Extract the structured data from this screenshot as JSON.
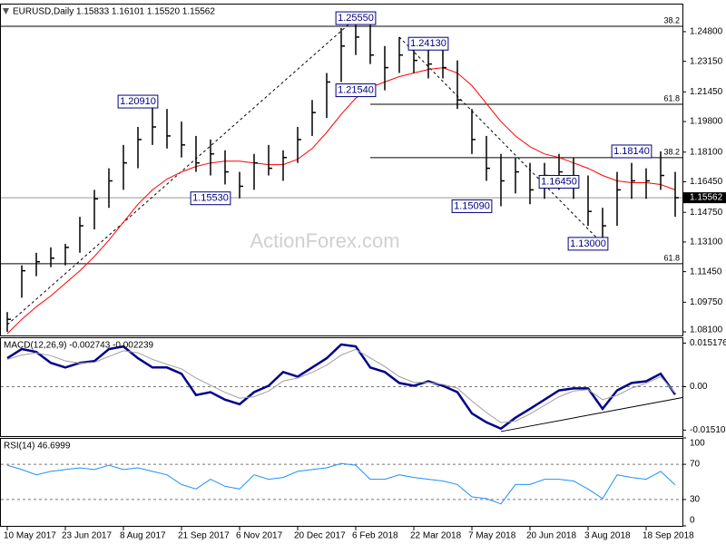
{
  "chart_data": [
    {
      "type": "ohlc",
      "title": "EURUSD,Daily 1.15833 1.16101 1.15520 1.15562",
      "color": "#000000",
      "high": [
        1.092,
        1.118,
        1.125,
        1.128,
        1.13,
        1.145,
        1.16,
        1.172,
        1.185,
        1.195,
        1.2091,
        1.205,
        1.198,
        1.19,
        1.188,
        1.182,
        1.17,
        1.18,
        1.185,
        1.182,
        1.195,
        1.21,
        1.225,
        1.25,
        1.2555,
        1.252,
        1.24,
        1.245,
        1.2413,
        1.242,
        1.238,
        1.232,
        1.205,
        1.19,
        1.18,
        1.178,
        1.175,
        1.175,
        1.18,
        1.178,
        1.168,
        1.15,
        1.17,
        1.175,
        1.172,
        1.1814,
        1.17
      ],
      "low": [
        1.081,
        1.1,
        1.112,
        1.117,
        1.118,
        1.125,
        1.138,
        1.15,
        1.16,
        1.172,
        1.185,
        1.183,
        1.178,
        1.17,
        1.168,
        1.163,
        1.1553,
        1.16,
        1.168,
        1.165,
        1.175,
        1.19,
        1.2,
        1.22,
        1.235,
        1.23,
        1.2154,
        1.225,
        1.225,
        1.222,
        1.222,
        1.205,
        1.18,
        1.165,
        1.1509,
        1.158,
        1.152,
        1.155,
        1.16,
        1.155,
        1.14,
        1.13,
        1.14,
        1.155,
        1.155,
        1.16,
        1.145
      ],
      "close": [
        1.088,
        1.115,
        1.12,
        1.122,
        1.128,
        1.14,
        1.155,
        1.165,
        1.175,
        1.188,
        1.195,
        1.19,
        1.185,
        1.175,
        1.18,
        1.17,
        1.162,
        1.175,
        1.172,
        1.178,
        1.188,
        1.203,
        1.22,
        1.24,
        1.245,
        1.235,
        1.228,
        1.235,
        1.232,
        1.23,
        1.228,
        1.21,
        1.188,
        1.172,
        1.165,
        1.17,
        1.16,
        1.168,
        1.17,
        1.165,
        1.148,
        1.14,
        1.16,
        1.165,
        1.165,
        1.168,
        1.15562
      ],
      "overlays": [
        {
          "color": "#ff0000",
          "values": [
            1.08,
            1.088,
            1.095,
            1.101,
            1.108,
            1.115,
            1.123,
            1.132,
            1.142,
            1.152,
            1.16,
            1.166,
            1.17,
            1.173,
            1.175,
            1.176,
            1.176,
            1.175,
            1.174,
            1.174,
            1.177,
            1.183,
            1.192,
            1.202,
            1.211,
            1.217,
            1.22,
            1.223,
            1.225,
            1.227,
            1.228,
            1.225,
            1.218,
            1.208,
            1.198,
            1.19,
            1.184,
            1.18,
            1.178,
            1.175,
            1.172,
            1.168,
            1.165,
            1.164,
            1.164,
            1.163,
            1.16
          ]
        }
      ],
      "ylim": [
        1.079,
        1.2636
      ],
      "yticks": [
        {
          "value": 1.081,
          "label": "1.08100"
        },
        {
          "value": 1.0975,
          "label": "1.09750"
        },
        {
          "value": 1.1145,
          "label": "1.11450"
        },
        {
          "value": 1.131,
          "label": "1.13100"
        },
        {
          "value": 1.1475,
          "label": "1.14750"
        },
        {
          "value": 1.1645,
          "label": "1.16450"
        },
        {
          "value": 1.181,
          "label": "1.18100"
        },
        {
          "value": 1.198,
          "label": "1.19800"
        },
        {
          "value": 1.2145,
          "label": "1.21450"
        },
        {
          "value": 1.2315,
          "label": "1.23150"
        },
        {
          "value": 1.248,
          "label": "1.24800"
        }
      ],
      "levels": [
        {
          "value": 1.251,
          "label": "38.2",
          "from": 0
        },
        {
          "value": 1.2076,
          "label": "61.8",
          "from": 25
        },
        {
          "value": 1.1779,
          "label": "38.2",
          "from": 25
        },
        {
          "value": 1.1189,
          "label": "61.8",
          "from": 0
        }
      ],
      "trendlines": [
        {
          "from": [
            0,
            1.085
          ],
          "to": [
            24,
            1.2555
          ]
        },
        {
          "from": [
            27,
            1.245
          ],
          "to": [
            41,
            1.13
          ]
        }
      ],
      "annotations": [
        {
          "label": "1.25550",
          "value": 1.2555,
          "bar": 24
        },
        {
          "label": "1.24130",
          "value": 1.2413,
          "bar": 29
        },
        {
          "label": "1.21540",
          "value": 1.2154,
          "bar": 24
        },
        {
          "label": "1.20910",
          "value": 1.2091,
          "bar": 9
        },
        {
          "label": "1.15530",
          "value": 1.1553,
          "bar": 14
        },
        {
          "label": "1.15090",
          "value": 1.1509,
          "bar": 32
        },
        {
          "label": "1.18140",
          "value": 1.1814,
          "bar": 43
        },
        {
          "label": "1.16450",
          "value": 1.1645,
          "bar": 38
        },
        {
          "label": "1.13000",
          "value": 1.13,
          "bar": 40
        }
      ],
      "last_price": {
        "value": 1.15562,
        "label": "1.15562"
      },
      "watermark": "ActionForex.com"
    },
    {
      "type": "line",
      "title": "MACD(12,26,9) -0.002743 -0.002239",
      "ylim": [
        -0.0172,
        0.0172
      ],
      "yticks": [
        0.015176,
        {
          "value": 0,
          "label": "0.00"
        },
        -0.015105
      ],
      "reference_lines": [
        0
      ],
      "series": [
        {
          "color": "#00008b",
          "values": [
            0.0099,
            0.0131,
            0.0121,
            0.0083,
            0.0067,
            0.0083,
            0.0089,
            0.0131,
            0.014,
            0.0099,
            0.0067,
            0.0067,
            0.0045,
            -0.0029,
            -0.0019,
            -0.0045,
            -0.0061,
            -0.0019,
            0.0003,
            0.0051,
            0.0035,
            0.0067,
            0.0099,
            0.0147,
            0.014,
            0.0067,
            0.0051,
            0.0013,
            0.0003,
            0.0019,
            0.0003,
            -0.0019,
            -0.0093,
            -0.0124,
            -0.0146,
            -0.0108,
            -0.0077,
            -0.0045,
            -0.0013,
            -0.0006,
            -0.0006,
            -0.0077,
            -0.0013,
            0.0013,
            0.0019,
            0.0045,
            -0.0027
          ]
        },
        {
          "color": "#a0a0a0",
          "values": [
            0.0095,
            0.011,
            0.0118,
            0.0108,
            0.009,
            0.0082,
            0.0085,
            0.0105,
            0.0125,
            0.0118,
            0.0095,
            0.0078,
            0.0062,
            0.003,
            0.0005,
            -0.002,
            -0.004,
            -0.0035,
            -0.0015,
            0.002,
            0.003,
            0.005,
            0.0075,
            0.011,
            0.013,
            0.01,
            0.007,
            0.0035,
            0.0015,
            0.0015,
            0.0008,
            -0.0005,
            -0.005,
            -0.009,
            -0.0125,
            -0.012,
            -0.0095,
            -0.0065,
            -0.0035,
            -0.0015,
            -0.001,
            -0.0045,
            -0.003,
            -0.0005,
            0.0012,
            0.0035,
            -0.0022
          ]
        }
      ],
      "trendlines": [
        {
          "from": [
            34,
            -0.0156
          ],
          "to": [
            46.5,
            -0.0038
          ]
        }
      ]
    },
    {
      "type": "line",
      "title": "RSI(14) 46.6999",
      "ylim": [
        0,
        100
      ],
      "yticks": [
        100,
        70,
        30,
        0
      ],
      "reference_lines": [
        70,
        30
      ],
      "series": [
        {
          "color": "#1e90ff",
          "values": [
            69,
            64,
            58,
            62,
            64,
            66,
            64,
            69,
            64,
            66,
            62,
            58,
            47,
            42,
            53,
            45,
            42,
            58,
            53,
            55,
            62,
            64,
            66,
            71,
            69,
            53,
            53,
            58,
            55,
            53,
            51,
            47,
            33,
            31,
            25,
            47,
            47,
            53,
            53,
            51,
            42,
            31,
            58,
            55,
            53,
            62,
            46.7
          ]
        }
      ],
      "categories": [
        "10 May 2017",
        null,
        null,
        null,
        "23 Jun 2017",
        null,
        null,
        null,
        "8 Aug 2017",
        null,
        null,
        null,
        "21 Sep 2017",
        null,
        null,
        null,
        "6 Nov 2017",
        null,
        null,
        null,
        "20 Dec 2017",
        null,
        null,
        null,
        "6 Feb 2018",
        null,
        null,
        null,
        "22 Mar 2018",
        null,
        null,
        null,
        "7 May 2018",
        null,
        null,
        null,
        "20 Jun 2018",
        null,
        null,
        null,
        "3 Aug 2018",
        null,
        null,
        null,
        "18 Sep 2018",
        null,
        null
      ]
    }
  ]
}
